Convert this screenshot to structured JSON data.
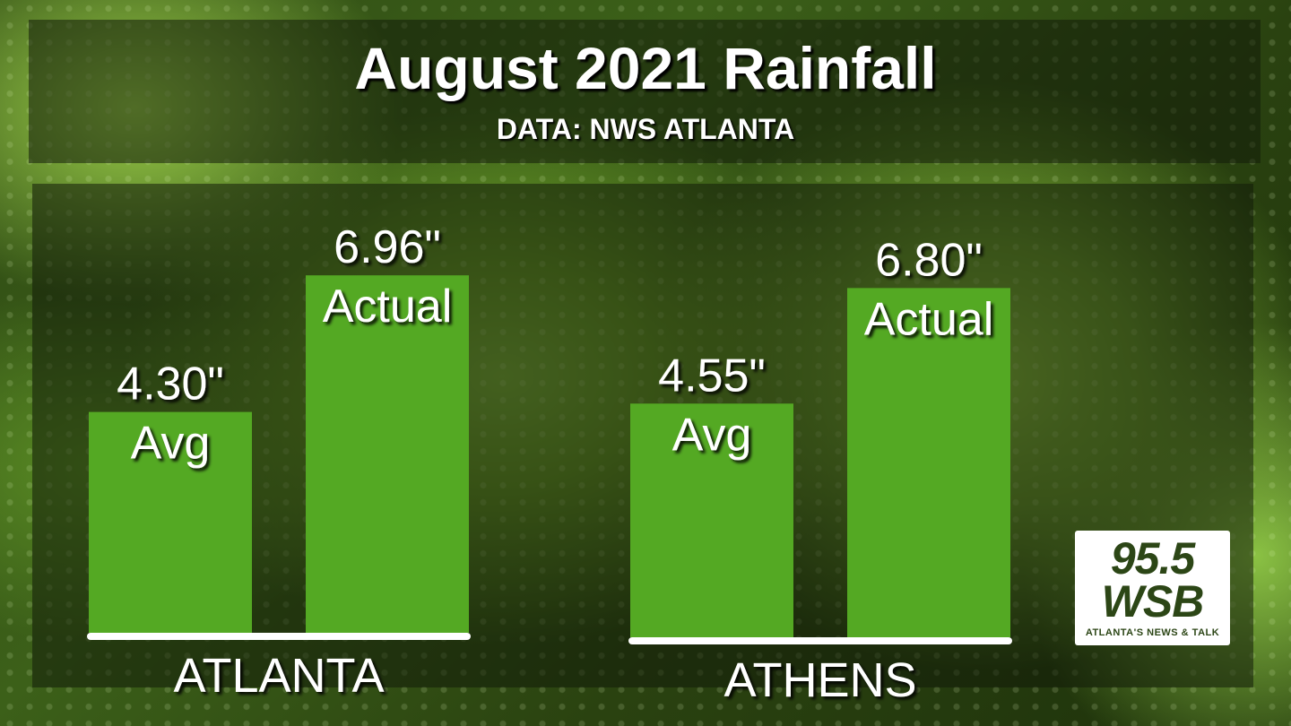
{
  "header": {
    "title": "August 2021 Rainfall",
    "subtitle": "DATA: NWS ATLANTA"
  },
  "chart_data": {
    "type": "bar",
    "categories": [
      "ATLANTA",
      "ATHENS"
    ],
    "unit": "\"",
    "bar_color": "#54a923",
    "series": [
      {
        "name": "Avg",
        "values": [
          4.3,
          4.55
        ]
      },
      {
        "name": "Actual",
        "values": [
          6.96,
          6.8
        ]
      }
    ],
    "value_labels": {
      "Avg": [
        "4.30\"",
        "4.55\""
      ],
      "Actual": [
        "6.96\"",
        "6.80\""
      ]
    },
    "title": "August 2021 Rainfall",
    "xlabel": "",
    "ylabel": "",
    "grid": false,
    "legend": "none"
  },
  "logo": {
    "frequency": "95.5",
    "call_sign": "WSB",
    "tagline": "ATLANTA'S NEWS & TALK"
  }
}
